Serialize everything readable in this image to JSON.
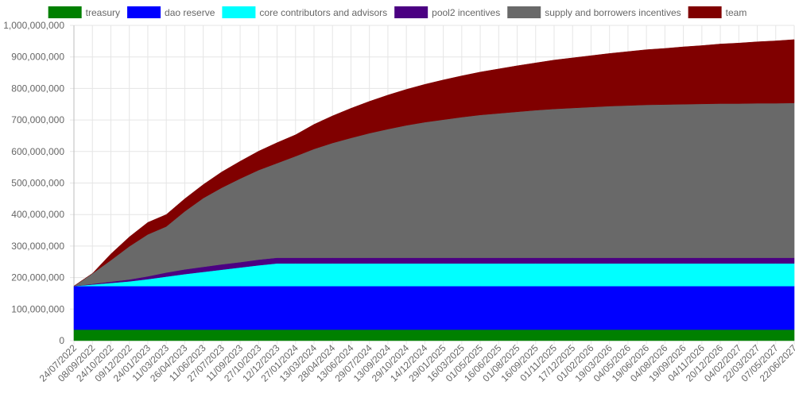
{
  "chart_data": {
    "type": "area",
    "stacked": true,
    "title": "",
    "xlabel": "",
    "ylabel": "",
    "ylim": [
      0,
      1000000000
    ],
    "grid": true,
    "legend_position": "top",
    "y_tick_labels": [
      "0",
      "100,000,000",
      "200,000,000",
      "300,000,000",
      "400,000,000",
      "500,000,000",
      "600,000,000",
      "700,000,000",
      "800,000,000",
      "900,000,000",
      "1,000,000,000"
    ],
    "x": [
      "24/07/2022",
      "08/09/2022",
      "24/10/2022",
      "09/12/2022",
      "24/01/2023",
      "11/03/2023",
      "26/04/2023",
      "11/06/2023",
      "27/07/2023",
      "11/09/2023",
      "27/10/2023",
      "12/12/2023",
      "27/01/2024",
      "13/03/2024",
      "28/04/2024",
      "13/06/2024",
      "29/07/2024",
      "13/09/2024",
      "29/10/2024",
      "14/12/2024",
      "29/01/2025",
      "16/03/2025",
      "01/05/2025",
      "16/06/2025",
      "01/08/2025",
      "16/09/2025",
      "01/11/2025",
      "17/12/2025",
      "01/02/2026",
      "19/03/2026",
      "04/05/2026",
      "19/06/2026",
      "04/08/2026",
      "19/09/2026",
      "04/11/2026",
      "20/12/2026",
      "04/02/2027",
      "22/03/2027",
      "07/05/2027",
      "22/06/2027"
    ],
    "series": [
      {
        "name": "treasury",
        "color": "#008000",
        "values": [
          35000000,
          35000000,
          35000000,
          35000000,
          35000000,
          35000000,
          35000000,
          35000000,
          35000000,
          35000000,
          35000000,
          35000000,
          35000000,
          35000000,
          35000000,
          35000000,
          35000000,
          35000000,
          35000000,
          35000000,
          35000000,
          35000000,
          35000000,
          35000000,
          35000000,
          35000000,
          35000000,
          35000000,
          35000000,
          35000000,
          35000000,
          35000000,
          35000000,
          35000000,
          35000000,
          35000000,
          35000000,
          35000000,
          35000000,
          35000000
        ]
      },
      {
        "name": "dao reserve",
        "color": "#0000ff",
        "values": [
          138000000,
          138000000,
          138000000,
          138000000,
          138000000,
          138000000,
          138000000,
          138000000,
          138000000,
          138000000,
          138000000,
          138000000,
          138000000,
          138000000,
          138000000,
          138000000,
          138000000,
          138000000,
          138000000,
          138000000,
          138000000,
          138000000,
          138000000,
          138000000,
          138000000,
          138000000,
          138000000,
          138000000,
          138000000,
          138000000,
          138000000,
          138000000,
          138000000,
          138000000,
          138000000,
          138000000,
          138000000,
          138000000,
          138000000,
          138000000
        ]
      },
      {
        "name": "core contributors and advisors",
        "color": "#00ffff",
        "values": [
          0,
          5000000,
          10000000,
          15000000,
          22000000,
          30000000,
          38000000,
          45000000,
          52000000,
          59000000,
          66000000,
          72000000,
          72000000,
          72000000,
          72000000,
          72000000,
          72000000,
          72000000,
          72000000,
          72000000,
          72000000,
          72000000,
          72000000,
          72000000,
          72000000,
          72000000,
          72000000,
          72000000,
          72000000,
          72000000,
          72000000,
          72000000,
          72000000,
          72000000,
          72000000,
          72000000,
          72000000,
          72000000,
          72000000,
          72000000
        ]
      },
      {
        "name": "pool2 incentives",
        "color": "#4b0082",
        "values": [
          0,
          2000000,
          4000000,
          6000000,
          9000000,
          13000000,
          15000000,
          16000000,
          17000000,
          17000000,
          18000000,
          18000000,
          18000000,
          18000000,
          18000000,
          18000000,
          18000000,
          18000000,
          18000000,
          18000000,
          18000000,
          18000000,
          18000000,
          18000000,
          18000000,
          18000000,
          18000000,
          18000000,
          18000000,
          18000000,
          18000000,
          18000000,
          18000000,
          18000000,
          18000000,
          18000000,
          18000000,
          18000000,
          18000000,
          18000000
        ]
      },
      {
        "name": "supply and borrowers incentives",
        "color": "#696969",
        "values": [
          0,
          33000000,
          68000000,
          105000000,
          133000000,
          146000000,
          184000000,
          218000000,
          243000000,
          265000000,
          284000000,
          300000000,
          322000000,
          345000000,
          364000000,
          380000000,
          395000000,
          408000000,
          420000000,
          430000000,
          438000000,
          446000000,
          453000000,
          458000000,
          463000000,
          468000000,
          472000000,
          475000000,
          478000000,
          481000000,
          483000000,
          485000000,
          486000000,
          487000000,
          488000000,
          489000000,
          489000000,
          490000000,
          490000000,
          491000000
        ]
      },
      {
        "name": "team",
        "color": "#800000",
        "values": [
          0,
          0,
          20000000,
          30000000,
          38000000,
          38000000,
          40000000,
          43000000,
          50000000,
          55000000,
          60000000,
          65000000,
          68000000,
          78000000,
          86000000,
          94000000,
          101000000,
          108000000,
          114000000,
          120000000,
          126000000,
          131000000,
          136000000,
          141000000,
          146000000,
          150000000,
          155000000,
          159000000,
          163000000,
          167000000,
          171000000,
          175000000,
          178000000,
          182000000,
          185000000,
          189000000,
          192000000,
          195000000,
          198000000,
          201000000
        ]
      }
    ]
  }
}
